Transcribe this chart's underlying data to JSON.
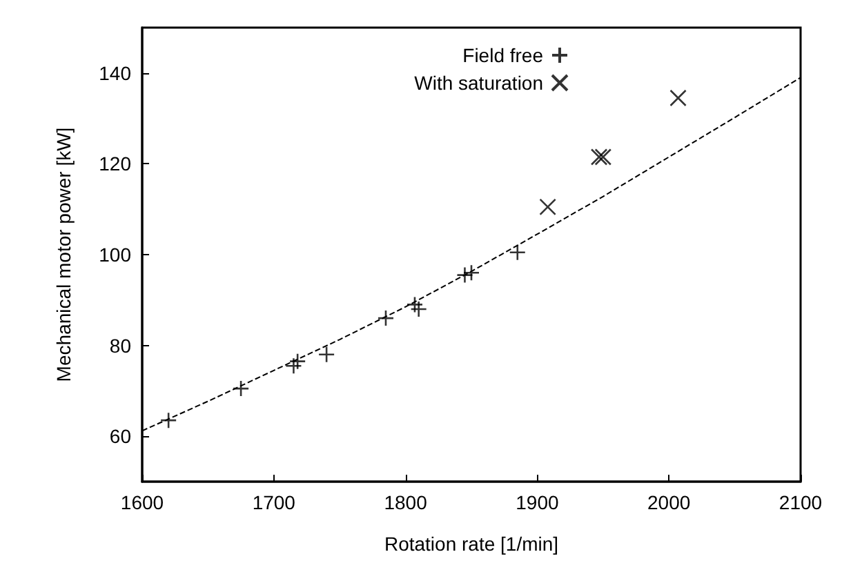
{
  "chart_data": {
    "type": "scatter",
    "xlabel": "Rotation rate [1/min]",
    "ylabel": "Mechanical motor power [kW]",
    "xlim": [
      1600,
      2100
    ],
    "ylim": [
      50,
      150
    ],
    "xticks": [
      1600,
      1700,
      1800,
      1900,
      2000,
      2100
    ],
    "yticks": [
      60,
      80,
      100,
      120,
      140
    ],
    "grid": false,
    "legend": "top right",
    "series": [
      {
        "name": "Field free",
        "color": "#000000",
        "marker": "plus",
        "x": [
          1620,
          1675,
          1715,
          1718,
          1740,
          1785,
          1807,
          1810,
          1845,
          1850,
          1885
        ],
        "values": [
          63.5,
          70.5,
          75.5,
          76.5,
          78,
          86,
          89,
          88,
          95.5,
          96,
          100.5
        ]
      },
      {
        "name": "With saturation",
        "color": "#000000",
        "marker": "cross",
        "x": [
          1908,
          1947,
          1950,
          2007
        ],
        "values": [
          110.5,
          121.5,
          121.5,
          134.5
        ]
      },
      {
        "type": "line",
        "color": "#000000",
        "marker": "none",
        "line_style": "dashed",
        "x": [
          1600,
          1650,
          1700,
          1750,
          1800,
          1850,
          1900,
          1950,
          2000,
          2050,
          2100
        ],
        "values": [
          61.2,
          67.7,
          74.5,
          81.3,
          88.5,
          96.3,
          104.5,
          112.8,
          121.5,
          130.2,
          139
        ]
      }
    ]
  }
}
